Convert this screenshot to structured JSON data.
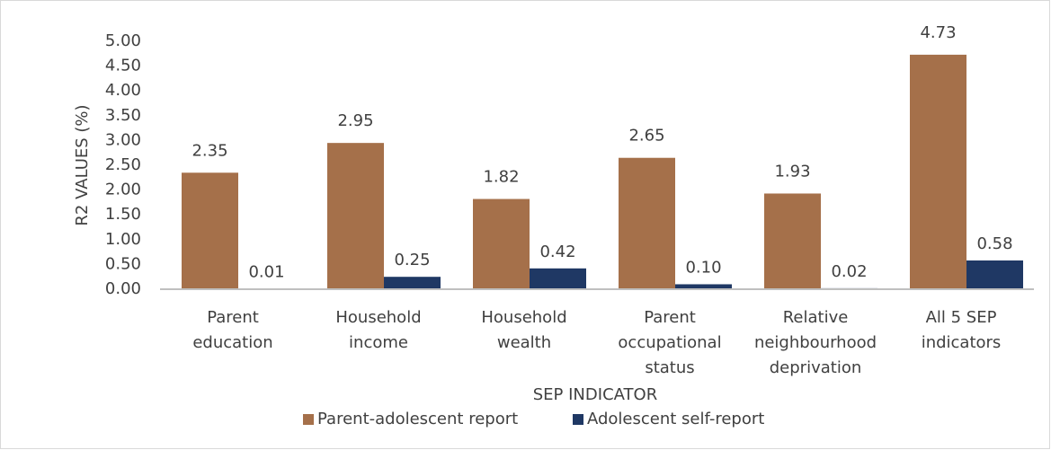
{
  "chart_data": {
    "type": "bar",
    "x_label": "SEP INDICATOR",
    "y_label": "R2 VALUES (%)",
    "categories": [
      [
        "Parent",
        "education"
      ],
      [
        "Household",
        "income"
      ],
      [
        "Household",
        "wealth"
      ],
      [
        "Parent",
        "occupational",
        "status"
      ],
      [
        "Relative",
        "neighbourhood",
        "deprivation"
      ],
      [
        "All 5 SEP",
        "indicators"
      ]
    ],
    "series": [
      {
        "name": "Parent-adolescent report",
        "color": "#a5704a",
        "values": [
          2.35,
          2.95,
          1.82,
          2.65,
          1.93,
          4.73
        ],
        "value_labels": [
          "2.35",
          "2.95",
          "1.82",
          "2.65",
          "1.93",
          "4.73"
        ]
      },
      {
        "name": "Adolescent self-report",
        "color": "#1f3864",
        "values": [
          0.01,
          0.25,
          0.42,
          0.1,
          0.02,
          0.58
        ],
        "value_labels": [
          "0.01",
          "0.25",
          "0.42",
          "0.10",
          "0.02",
          "0.58"
        ]
      }
    ],
    "ylim": [
      0,
      5
    ],
    "yticks": [
      {
        "value": 0,
        "label": "0.00"
      },
      {
        "value": 0.5,
        "label": "0.50"
      },
      {
        "value": 1,
        "label": "1.00"
      },
      {
        "value": 1.5,
        "label": "1.50"
      },
      {
        "value": 2,
        "label": "2.00"
      },
      {
        "value": 2.5,
        "label": "2.50"
      },
      {
        "value": 3,
        "label": "3.00"
      },
      {
        "value": 3.5,
        "label": "3.50"
      },
      {
        "value": 4,
        "label": "4.00"
      },
      {
        "value": 4.5,
        "label": "4.50"
      },
      {
        "value": 5,
        "label": "5.00"
      }
    ],
    "grid": false,
    "legend": "bottom"
  }
}
